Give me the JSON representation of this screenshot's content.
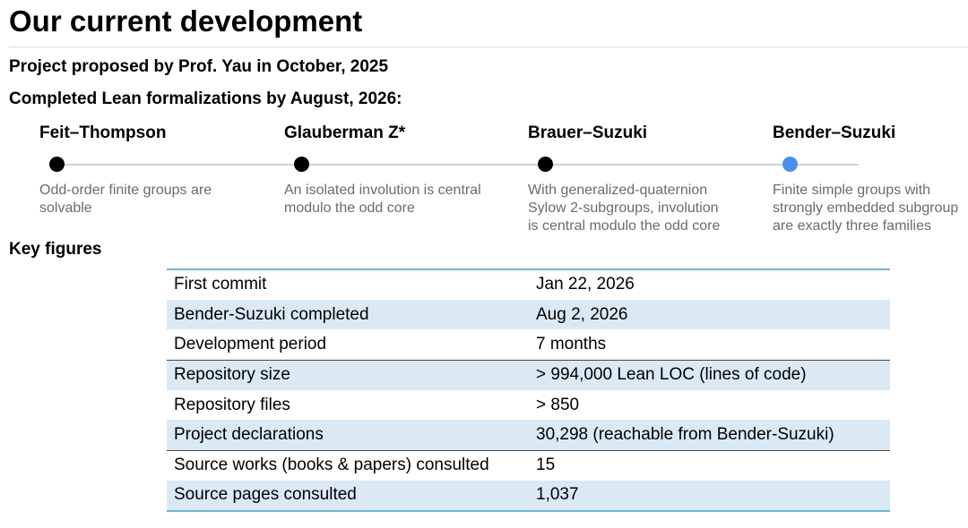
{
  "page": {
    "title": "Our current development",
    "proposed": "Project proposed by Prof. Yau in October, 2025",
    "completed_heading": "Completed Lean formalizations by August, 2026:",
    "key_figures_heading": "Key figures"
  },
  "timeline": {
    "line_color": "#d4d4d4",
    "dot_color": "#000000",
    "current_dot_color": "#4a8ff0",
    "milestones": [
      {
        "title": "Feit–Thompson",
        "description": "Odd-order finite groups are solvable",
        "current": false
      },
      {
        "title": "Glauberman Z*",
        "description": "An isolated involution is central modulo the odd core",
        "current": false
      },
      {
        "title": "Brauer–Suzuki",
        "description": "With generalized-quaternion Sylow 2-subgroups, involution is central modulo the odd core",
        "current": false
      },
      {
        "title": "Bender–Suzuki",
        "description": "Finite simple groups with strongly embedded subgroup are exactly three families",
        "current": true
      }
    ]
  },
  "key_figures": {
    "shade_color": "#dbe9f5",
    "border_color": "#6fb6cf",
    "rows": [
      {
        "label": "First commit",
        "value": "Jan 22, 2026"
      },
      {
        "label": "Bender-Suzuki completed",
        "value": "Aug 2, 2026"
      },
      {
        "label": "Development period",
        "value": "7 months"
      },
      {
        "label": "Repository size",
        "value": "> 994,000 Lean LOC (lines of code)"
      },
      {
        "label": "Repository files",
        "value": "> 850"
      },
      {
        "label": "Project declarations",
        "value": "30,298 (reachable from Bender-Suzuki)"
      },
      {
        "label": "Source works (books & papers) consulted",
        "value": "15"
      },
      {
        "label": "Source pages consulted",
        "value": "1,037"
      }
    ]
  }
}
